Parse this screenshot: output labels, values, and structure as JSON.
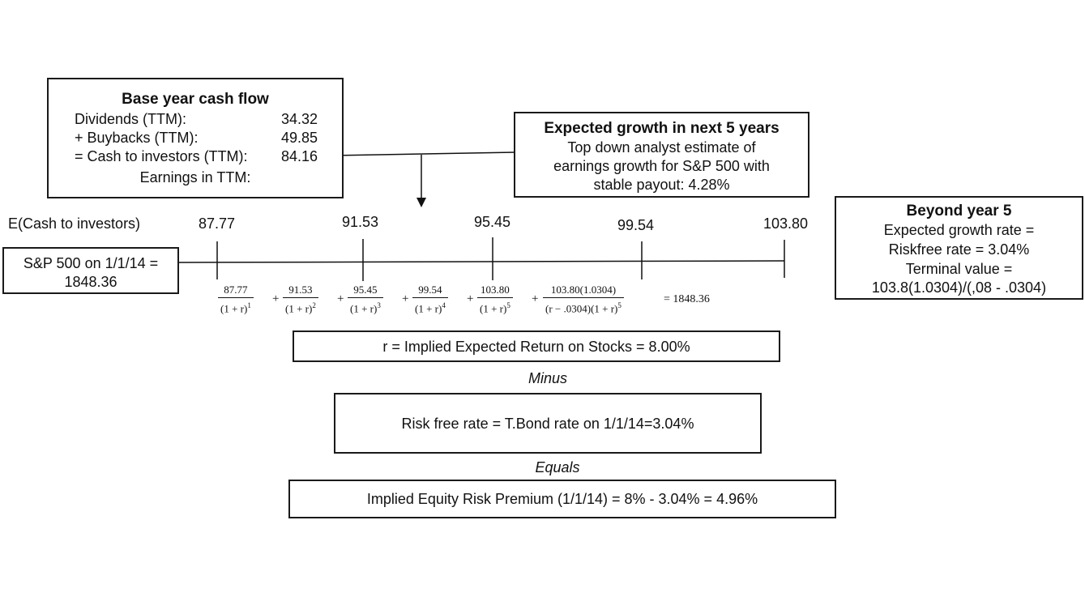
{
  "base_year": {
    "title": "Base year cash flow",
    "rows": [
      {
        "label": "Dividends (TTM):",
        "value": "34.32"
      },
      {
        "label": "+ Buybacks (TTM):",
        "value": "49.85"
      },
      {
        "label": "= Cash to investors (TTM):",
        "value": "84.16"
      }
    ],
    "earnings_label": "Earnings in TTM:"
  },
  "growth_box": {
    "title": "Expected growth in next 5 years",
    "line1": "Top down analyst estimate of",
    "line2": "earnings growth for S&P 500 with",
    "line3": "stable payout: 4.28%"
  },
  "beyond_box": {
    "title": "Beyond year 5",
    "line1": "Expected growth rate =",
    "line2": "Riskfree rate = 3.04%",
    "line3": "Terminal value =",
    "line4": "103.8(1.0304)/(,08 - .0304)"
  },
  "timeline": {
    "label": "E(Cash to investors)",
    "values": [
      "87.77",
      "91.53",
      "95.45",
      "99.54",
      "103.80"
    ]
  },
  "sp_box": {
    "line1": "S&P 500 on 1/1/14 =",
    "line2": "1848.36"
  },
  "equation": {
    "terms": [
      {
        "num": "87.77",
        "den": "(1 + r)",
        "exp": "1"
      },
      {
        "num": "91.53",
        "den": "(1 + r)",
        "exp": "2"
      },
      {
        "num": "95.45",
        "den": "(1 + r)",
        "exp": "3"
      },
      {
        "num": "99.54",
        "den": "(1 + r)",
        "exp": "4"
      },
      {
        "num": "103.80",
        "den": "(1 + r)",
        "exp": "5"
      },
      {
        "num": "103.80(1.0304)",
        "den": "(r − .0304)(1 + r)",
        "exp": "5"
      }
    ],
    "plus": "+",
    "result": "= 1848.36"
  },
  "implied_return": "r = Implied Expected Return on Stocks = 8.00%",
  "minus_label": "Minus",
  "riskfree_text": "Risk free rate = T.Bond rate on 1/1/14=3.04%",
  "equals_label": "Equals",
  "erp_text": "Implied Equity Risk Premium (1/1/14) = 8% - 3.04% = 4.96%"
}
